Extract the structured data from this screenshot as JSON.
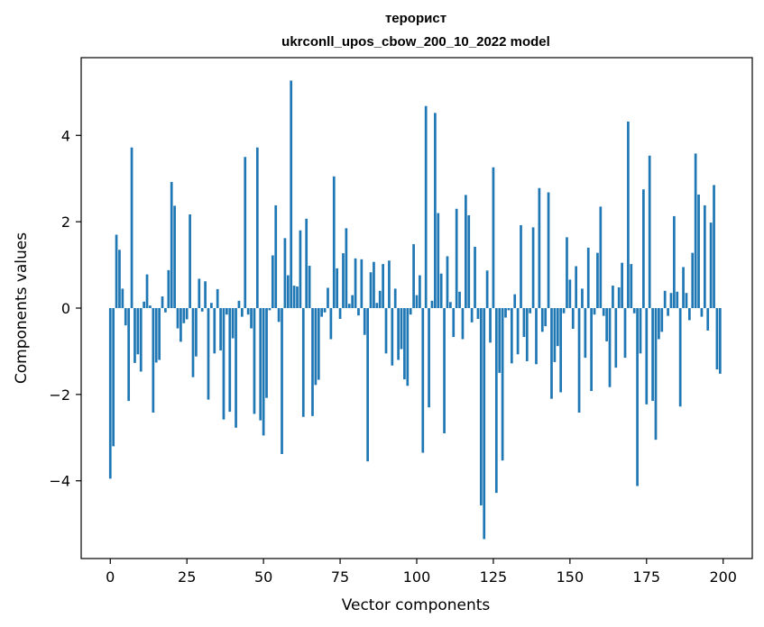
{
  "chart_data": {
    "type": "bar",
    "title": "терорист",
    "subtitle": "ukrconll_upos_cbow_200_10_2022 model",
    "xlabel": "Vector components",
    "ylabel": "Components values",
    "xlim": [
      -9.5,
      209.5
    ],
    "ylim": [
      -5.8,
      5.8
    ],
    "xticks": [
      0,
      25,
      50,
      75,
      100,
      125,
      150,
      175,
      200
    ],
    "yticks": [
      -4,
      -2,
      0,
      2,
      4
    ],
    "bar_color": "#1f77b4",
    "grid": false,
    "values": [
      -3.95,
      -3.2,
      1.7,
      1.35,
      0.45,
      -0.4,
      -2.15,
      3.72,
      -1.27,
      -1.07,
      -1.47,
      0.15,
      0.78,
      0.06,
      -2.42,
      -1.26,
      -1.2,
      0.27,
      -0.1,
      0.88,
      2.92,
      2.37,
      -0.47,
      -0.78,
      -0.35,
      -0.26,
      2.17,
      -1.6,
      -1.12,
      0.68,
      -0.08,
      0.62,
      -2.12,
      0.12,
      -1.05,
      0.44,
      -0.98,
      -2.58,
      -0.15,
      -2.4,
      -0.7,
      -2.77,
      0.17,
      -0.2,
      3.5,
      -0.15,
      -0.47,
      -2.45,
      3.72,
      -2.6,
      -2.95,
      -2.08,
      -0.05,
      1.22,
      2.38,
      -0.32,
      -3.38,
      1.62,
      0.76,
      5.27,
      0.52,
      0.5,
      1.8,
      -2.52,
      2.07,
      0.98,
      -2.5,
      -1.78,
      -1.66,
      -0.2,
      -0.1,
      0.47,
      -0.72,
      3.05,
      0.92,
      -0.25,
      1.27,
      1.85,
      0.1,
      0.3,
      1.15,
      -0.17,
      1.13,
      -0.62,
      -3.55,
      0.83,
      1.07,
      0.12,
      0.4,
      1.02,
      -1.05,
      1.1,
      -1.33,
      0.45,
      -1.2,
      -0.95,
      -1.65,
      -1.8,
      -0.15,
      1.48,
      0.3,
      0.76,
      -3.35,
      4.68,
      -2.3,
      0.17,
      4.52,
      2.2,
      0.8,
      -2.9,
      1.2,
      0.14,
      -0.67,
      2.3,
      0.38,
      -0.72,
      2.62,
      2.15,
      -0.33,
      1.42,
      -0.25,
      -4.57,
      -5.35,
      0.87,
      -0.8,
      3.26,
      -4.28,
      -1.5,
      -3.53,
      -0.22,
      -0.05,
      -1.28,
      0.32,
      -1.07,
      1.92,
      -0.67,
      -1.23,
      -0.12,
      1.87,
      -1.3,
      2.78,
      -0.55,
      -0.42,
      2.68,
      -2.1,
      -1.25,
      -0.88,
      -1.95,
      -0.12,
      1.64,
      0.66,
      -0.48,
      0.97,
      -2.42,
      0.45,
      -1.15,
      1.4,
      -1.92,
      -0.15,
      1.28,
      2.35,
      -0.18,
      -0.77,
      -1.83,
      0.52,
      -1.38,
      0.48,
      1.05,
      -1.15,
      4.32,
      1.02,
      -0.12,
      -4.12,
      -1.05,
      2.75,
      -2.23,
      3.53,
      -2.15,
      -3.05,
      -0.72,
      -0.55,
      0.4,
      -0.18,
      0.35,
      2.13,
      0.38,
      -2.28,
      0.95,
      0.35,
      -0.28,
      1.28,
      3.58,
      2.63,
      -0.2,
      2.38,
      -0.52,
      1.98,
      2.85,
      -1.42,
      -1.52
    ]
  }
}
